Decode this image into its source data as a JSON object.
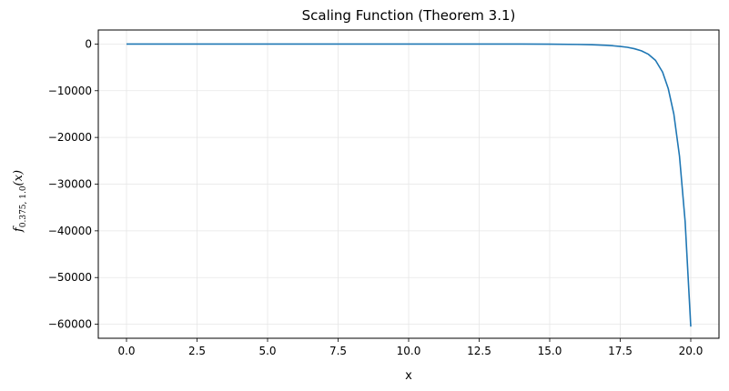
{
  "chart_data": {
    "type": "line",
    "title": "Scaling Function (Theorem 3.1)",
    "xlabel": "x",
    "ylabel": {
      "base": "f",
      "subscript": "0.375, 1.0",
      "argument": "(x)"
    },
    "xlim": [
      -1.0,
      21.0
    ],
    "ylim": [
      -63000,
      3000
    ],
    "xticks": [
      0.0,
      2.5,
      5.0,
      7.5,
      10.0,
      12.5,
      15.0,
      17.5,
      20.0
    ],
    "xtick_labels": [
      "0.0",
      "2.5",
      "5.0",
      "7.5",
      "10.0",
      "12.5",
      "15.0",
      "17.5",
      "20.0"
    ],
    "yticks": [
      0,
      -10000,
      -20000,
      -30000,
      -40000,
      -50000,
      -60000
    ],
    "ytick_labels": [
      "0",
      "−10000",
      "−20000",
      "−30000",
      "−40000",
      "−50000",
      "−60000"
    ],
    "grid": true,
    "series": [
      {
        "color": "#1f77b4",
        "x": [
          0.0,
          2.0,
          4.0,
          6.0,
          8.0,
          10.0,
          12.0,
          14.0,
          15.0,
          16.0,
          16.5,
          17.0,
          17.25,
          17.5,
          17.75,
          18.0,
          18.25,
          18.5,
          18.75,
          19.0,
          19.2,
          19.4,
          19.6,
          19.8,
          20.0
        ],
        "y": [
          0,
          0,
          0,
          0,
          0,
          0,
          0,
          -10,
          -30,
          -90,
          -160,
          -280,
          -380,
          -520,
          -700,
          -1000,
          -1450,
          -2200,
          -3500,
          -6000,
          -9500,
          -15000,
          -24000,
          -38000,
          -60500
        ]
      }
    ]
  }
}
